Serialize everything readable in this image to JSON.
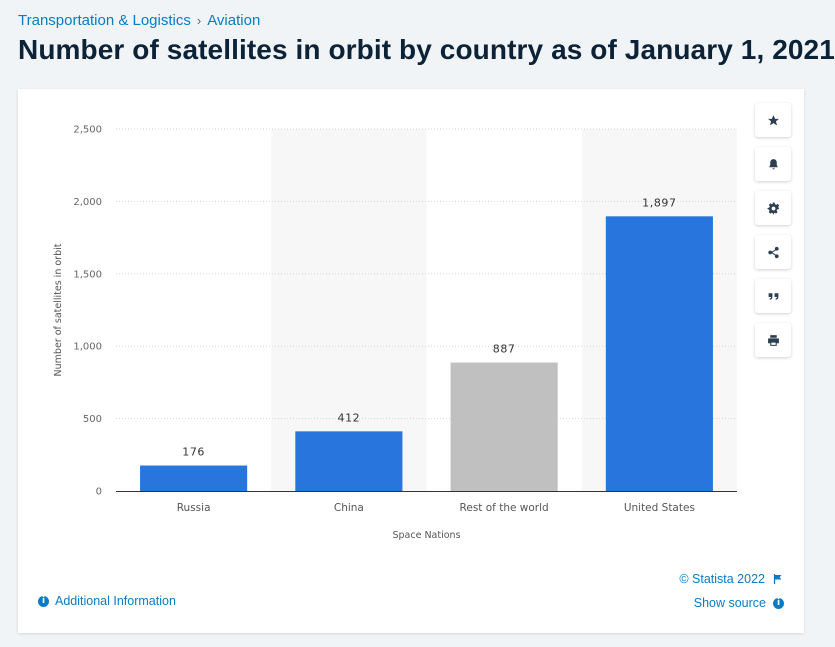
{
  "breadcrumb": {
    "items": [
      "Transportation & Logistics",
      "Aviation"
    ],
    "separator": "›"
  },
  "page_title": "Number of satellites in orbit by country as of January 1, 2021",
  "toolbar": {
    "icons": [
      "star-icon",
      "bell-icon",
      "gear-icon",
      "share-icon",
      "quote-icon",
      "print-icon"
    ]
  },
  "footer": {
    "additional_info": "Additional Information",
    "copyright": "© Statista 2022",
    "show_source": "Show source"
  },
  "colors": {
    "bar_primary": "#2876dd",
    "bar_highlight": "#c0c0c0",
    "link": "#0a7bc2",
    "title": "#0c2236"
  },
  "chart_data": {
    "type": "bar",
    "categories": [
      "Russia",
      "China",
      "Rest of the world",
      "United States"
    ],
    "values": [
      176,
      412,
      887,
      1897
    ],
    "value_labels": [
      "176",
      "412",
      "887",
      "1,897"
    ],
    "bar_colors": [
      "#2876dd",
      "#2876dd",
      "#c0c0c0",
      "#2876dd"
    ],
    "xlabel": "Space Nations",
    "ylabel": "Number of satellites in orbit",
    "ylim": [
      0,
      2500
    ],
    "yticks": [
      0,
      500,
      1000,
      1500,
      2000,
      2500
    ],
    "ytick_labels": [
      "0",
      "500",
      "1,000",
      "1,500",
      "2,000",
      "2,500"
    ],
    "grid": true,
    "alternating_column_shading": true
  }
}
